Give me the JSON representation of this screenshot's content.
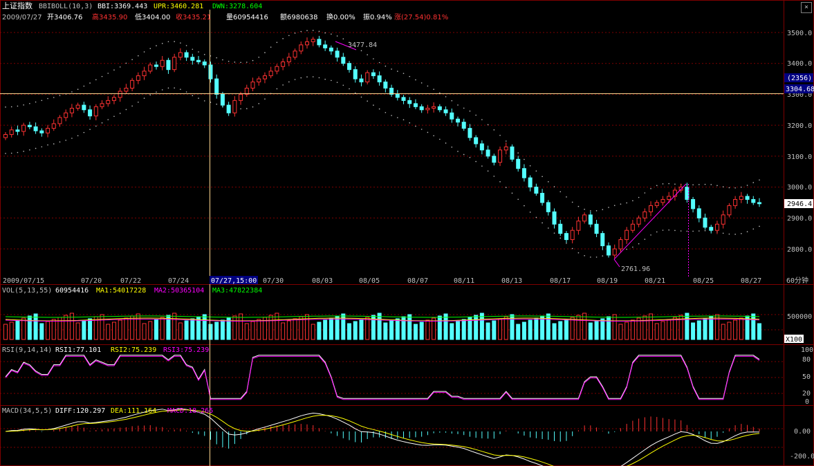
{
  "header": {
    "index_name": "上证指数",
    "indicator_name": "BBIBOLL(10,3)",
    "bbi": "BBI:3369.443",
    "upr": "UPR:3460.281",
    "dwn": "DWN:3278.604",
    "date": "2009/07/27",
    "open": "开3406.76",
    "high": "高3435.90",
    "low": "低3404.00",
    "close": "收3435.21",
    "volume": "量60954416",
    "amount": "额6980638",
    "turnover": "换0.00%",
    "amplitude": "振0.94%",
    "change": "涨(27.54)0.81%",
    "close_button": "×"
  },
  "colors": {
    "up": "#ff3232",
    "down": "#54ffff",
    "ma_white": "#ffffff",
    "ma_yellow": "#ffff00",
    "ma_magenta": "#ff00ff",
    "ma_green": "#00ff00",
    "grid": "#800000",
    "axis_text": "#c0c0c0",
    "cursor": "#ffd88f"
  },
  "price_axis": {
    "ticks": [
      "3500.0",
      "3400.0",
      "3300.0",
      "3200.0",
      "3100.0",
      "3000.0",
      "2900.0",
      "2800.0"
    ],
    "cursor_value": "3304.68",
    "cursor_count": "(2356)",
    "last_value": "2946.4"
  },
  "time_axis": {
    "labels": [
      "2009/07/15",
      "07/20",
      "07/22",
      "07/24",
      "07/27,15:00",
      "07/30",
      "08/03",
      "08/05",
      "08/07",
      "08/11",
      "08/13",
      "08/17",
      "08/19",
      "08/21",
      "08/25",
      "08/27"
    ],
    "period": "60分钟"
  },
  "annotations": {
    "high_label": "3477.84",
    "low_label": "2761.96"
  },
  "vol_panel": {
    "title": "VOL(5,13,55)",
    "value": "60954416",
    "ma1": "MA1:54017228",
    "ma2": "MA2:50365104",
    "ma3": "MA3:47822384",
    "tick": "500000",
    "unit": "X100"
  },
  "rsi_panel": {
    "title": "RSI(9,14,14)",
    "rsi1": "RSI1:77.101",
    "rsi2": "RSI2:75.239",
    "rsi3": "RSI3:75.239",
    "ticks": [
      "100",
      "80",
      "50",
      "20",
      "0"
    ]
  },
  "macd_panel": {
    "title": "MACD(34,5,5)",
    "diff": "DIFF:120.297",
    "dea": "DEA:111.164",
    "macd": "MACD:18.265",
    "ticks": [
      "0.00",
      "-200.0"
    ]
  },
  "chart_data": {
    "type": "candlestick",
    "ylim": [
      2720,
      3540
    ],
    "closes": [
      3170,
      3185,
      3180,
      3200,
      3195,
      3182,
      3175,
      3190,
      3205,
      3225,
      3240,
      3255,
      3265,
      3250,
      3230,
      3260,
      3270,
      3280,
      3290,
      3310,
      3320,
      3345,
      3360,
      3375,
      3395,
      3390,
      3410,
      3380,
      3420,
      3435,
      3420,
      3410,
      3405,
      3395,
      3350,
      3300,
      3265,
      3240,
      3280,
      3300,
      3320,
      3340,
      3350,
      3360,
      3375,
      3390,
      3405,
      3420,
      3440,
      3460,
      3470,
      3478,
      3460,
      3450,
      3440,
      3420,
      3400,
      3380,
      3350,
      3340,
      3370,
      3360,
      3340,
      3320,
      3300,
      3290,
      3280,
      3270,
      3260,
      3250,
      3255,
      3260,
      3250,
      3240,
      3220,
      3210,
      3190,
      3160,
      3140,
      3120,
      3100,
      3080,
      3120,
      3130,
      3090,
      3060,
      3030,
      3000,
      2980,
      2950,
      2920,
      2880,
      2850,
      2830,
      2860,
      2890,
      2910,
      2880,
      2850,
      2810,
      2780,
      2800,
      2830,
      2860,
      2880,
      2900,
      2920,
      2940,
      2950,
      2960,
      2970,
      2990,
      3000,
      2960,
      2930,
      2900,
      2870,
      2860,
      2880,
      2910,
      2940,
      2960,
      2970,
      2960,
      2950,
      2946
    ]
  }
}
